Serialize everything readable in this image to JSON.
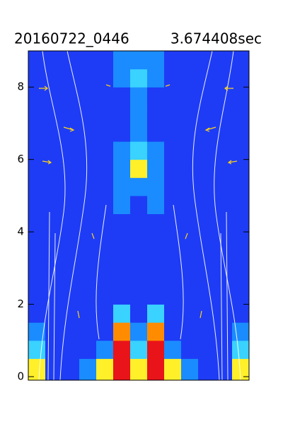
{
  "chart_data": {
    "type": "heatmap",
    "title": "20160722_0446",
    "subtitle": "3.674408sec",
    "ylim": [
      0,
      9
    ],
    "yticks": [
      0,
      2,
      4,
      6,
      8
    ],
    "colors": [
      "#1e3cf5",
      "#1a8cff",
      "#3ad2ff",
      "#fff02a",
      "#ff8c00",
      "#e8141a"
    ],
    "z": [
      [
        3,
        0,
        0,
        1,
        3,
        5,
        3,
        5,
        3,
        1,
        0,
        0,
        3
      ],
      [
        2,
        0,
        0,
        0,
        1,
        5,
        2,
        5,
        1,
        0,
        0,
        0,
        2
      ],
      [
        1,
        0,
        0,
        0,
        0,
        4,
        1,
        4,
        0,
        0,
        0,
        0,
        1
      ],
      [
        0,
        0,
        0,
        0,
        0,
        2,
        0,
        2,
        0,
        0,
        0,
        0,
        0
      ],
      [
        0,
        0,
        0,
        0,
        0,
        0,
        0,
        0,
        0,
        0,
        0,
        0,
        0
      ],
      [
        0,
        0,
        0,
        0,
        0,
        0,
        0,
        0,
        0,
        0,
        0,
        0,
        0
      ],
      [
        0,
        0,
        0,
        0,
        0,
        0,
        0,
        0,
        0,
        0,
        0,
        0,
        0
      ],
      [
        0,
        0,
        0,
        0,
        0,
        0,
        0,
        0,
        0,
        0,
        0,
        0,
        0
      ],
      [
        0,
        0,
        0,
        0,
        0,
        0,
        0,
        0,
        0,
        0,
        0,
        0,
        0
      ],
      [
        0,
        0,
        0,
        0,
        0,
        1,
        0,
        1,
        0,
        0,
        0,
        0,
        0
      ],
      [
        0,
        0,
        0,
        0,
        0,
        1,
        1,
        1,
        0,
        0,
        0,
        0,
        0
      ],
      [
        0,
        0,
        0,
        0,
        0,
        1,
        3,
        1,
        0,
        0,
        0,
        0,
        0
      ],
      [
        0,
        0,
        0,
        0,
        0,
        1,
        2,
        1,
        0,
        0,
        0,
        0,
        0
      ],
      [
        0,
        0,
        0,
        0,
        0,
        0,
        1,
        0,
        0,
        0,
        0,
        0,
        0
      ],
      [
        0,
        0,
        0,
        0,
        0,
        0,
        1,
        0,
        0,
        0,
        0,
        0,
        0
      ],
      [
        0,
        0,
        0,
        0,
        0,
        0,
        1,
        0,
        0,
        0,
        0,
        0,
        0
      ],
      [
        0,
        0,
        0,
        0,
        0,
        1,
        2,
        1,
        0,
        0,
        0,
        0,
        0
      ],
      [
        0,
        0,
        0,
        0,
        0,
        1,
        1,
        1,
        0,
        0,
        0,
        0,
        0
      ]
    ]
  }
}
